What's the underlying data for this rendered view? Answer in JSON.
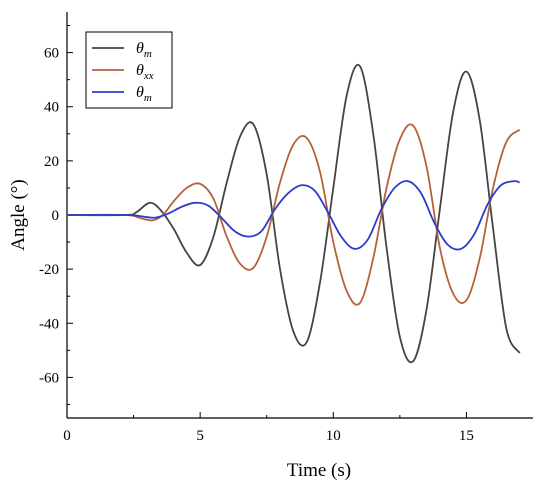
{
  "chart_data": {
    "type": "line",
    "title": "",
    "xlabel": "Time  (s)",
    "ylabel": "Angle  (°)",
    "xlim": [
      0,
      17.5
    ],
    "ylim": [
      -75,
      75
    ],
    "xticks": [
      0,
      5,
      10,
      15
    ],
    "yticks": [
      60,
      40,
      20,
      0,
      -20,
      -40,
      -60
    ],
    "grid": false,
    "legend_position": "top-left",
    "series": [
      {
        "name": "θm",
        "label_main": "θ",
        "label_sub": "m",
        "color": "#444444",
        "x": [
          0,
          2.2,
          2.6,
          3.1,
          3.5,
          4.0,
          4.5,
          5.0,
          5.5,
          6.0,
          6.5,
          7.0,
          7.5,
          8.0,
          8.5,
          9.0,
          9.5,
          10.0,
          10.5,
          11.0,
          11.5,
          12.0,
          12.5,
          13.0,
          13.5,
          14.0,
          14.5,
          15.0,
          15.5,
          16.0,
          16.5,
          17.0
        ],
        "y": [
          0,
          0,
          1,
          4.5,
          2,
          -5,
          -14,
          -18.5,
          -8,
          12,
          29,
          33.5,
          15,
          -20,
          -43,
          -47,
          -25,
          10,
          44,
          55,
          30,
          -12,
          -45,
          -54,
          -35,
          2,
          38,
          53,
          35,
          -5,
          -42,
          -51
        ]
      },
      {
        "name": "θxx",
        "label_main": "θ",
        "label_sub": "xx",
        "color": "#b5623a",
        "x": [
          0,
          2.2,
          2.7,
          3.2,
          3.6,
          4.0,
          4.5,
          5.0,
          5.5,
          6.0,
          6.5,
          7.0,
          7.5,
          8.0,
          8.5,
          9.0,
          9.5,
          10.0,
          10.5,
          11.0,
          11.5,
          12.0,
          12.5,
          13.0,
          13.5,
          14.0,
          14.5,
          15.0,
          15.5,
          16.0,
          16.5,
          17.0
        ],
        "y": [
          0,
          0,
          -1,
          -2,
          0,
          5,
          10,
          11.5,
          6,
          -8,
          -18,
          -19.5,
          -8,
          12,
          26,
          28.5,
          16,
          -10,
          -28,
          -32.5,
          -16,
          10,
          28,
          33,
          18,
          -12,
          -29,
          -31.5,
          -16,
          10,
          27,
          31.5
        ]
      },
      {
        "name": "θm",
        "label_main": "θ",
        "label_sub": "m",
        "color": "#2a3cc8",
        "x": [
          0,
          2.2,
          2.8,
          3.3,
          3.8,
          4.3,
          4.8,
          5.3,
          5.8,
          6.3,
          6.8,
          7.3,
          7.8,
          8.3,
          8.8,
          9.3,
          9.8,
          10.3,
          10.8,
          11.3,
          11.8,
          12.3,
          12.8,
          13.3,
          13.8,
          14.3,
          14.8,
          15.3,
          15.8,
          16.3,
          16.8,
          17.0
        ],
        "y": [
          0,
          0,
          -0.5,
          -1,
          0.5,
          3,
          4.5,
          3.5,
          -1,
          -6,
          -8,
          -6,
          2,
          8,
          11,
          9,
          1,
          -8,
          -12.5,
          -9,
          2,
          10,
          12.5,
          8,
          -3,
          -11,
          -12.5,
          -7,
          4,
          11,
          12.5,
          12
        ]
      }
    ]
  }
}
